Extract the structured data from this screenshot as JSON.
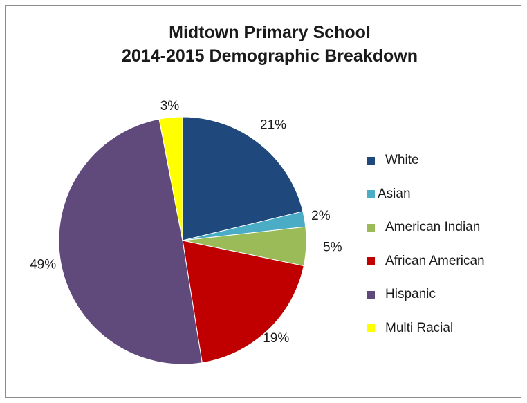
{
  "chart_data": {
    "type": "pie",
    "title_lines": [
      "Midtown Primary School",
      "2014-2015 Demographic Breakdown"
    ],
    "categories": [
      "White",
      "Asian",
      "American Indian",
      "African American",
      "Hispanic",
      "Multi Racial"
    ],
    "values": [
      21,
      2,
      5,
      19,
      49,
      3
    ],
    "labels": [
      "21%",
      "2%",
      "5%",
      "19%",
      "49%",
      "3%"
    ],
    "colors": [
      "#1F497D",
      "#4BACC6",
      "#9BBB59",
      "#C00000",
      "#604A7B",
      "#FFFF00"
    ],
    "legend_position": "right",
    "start_angle_deg": 0,
    "direction": "clockwise"
  }
}
